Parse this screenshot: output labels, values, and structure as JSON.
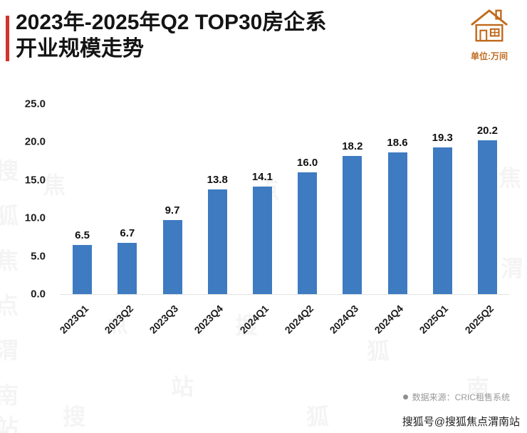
{
  "header": {
    "title_line1": "2023年-2025年Q2 TOP30房企系",
    "title_line2": "开业规模走势",
    "unit_label": "单位:万间"
  },
  "chart_data": {
    "type": "bar",
    "title": "2023年-2025年Q2 TOP30房企系开业规模走势",
    "categories": [
      "2023Q1",
      "2023Q2",
      "2023Q3",
      "2023Q4",
      "2024Q1",
      "2024Q2",
      "2024Q3",
      "2024Q4",
      "2025Q1",
      "2025Q2"
    ],
    "values": [
      6.5,
      6.7,
      9.7,
      13.8,
      14.1,
      16.0,
      18.2,
      18.6,
      19.3,
      20.2
    ],
    "value_labels": [
      "6.5",
      "6.7",
      "9.7",
      "13.8",
      "14.1",
      "16.0",
      "18.2",
      "18.6",
      "19.3",
      "20.2"
    ],
    "xlabel": "",
    "ylabel": "",
    "ylim": [
      0,
      25
    ],
    "ytick_labels": [
      "25.0",
      "20.0",
      "15.0",
      "10.0",
      "5.0",
      "0.0"
    ],
    "grid": false,
    "legend": "none",
    "bar_color": "#3e7bc1"
  },
  "footer": {
    "source_label": "数据来源：CRIC租售系统",
    "watermark": "搜狐号@搜狐焦点渭南站"
  },
  "watermarks": {
    "tile_text": "搜狐焦点渭南站"
  },
  "colors": {
    "accent_red": "#d0342c",
    "bar_blue": "#3e7bc1",
    "icon_orange": "#c06a1e",
    "source_gray": "#999999"
  }
}
